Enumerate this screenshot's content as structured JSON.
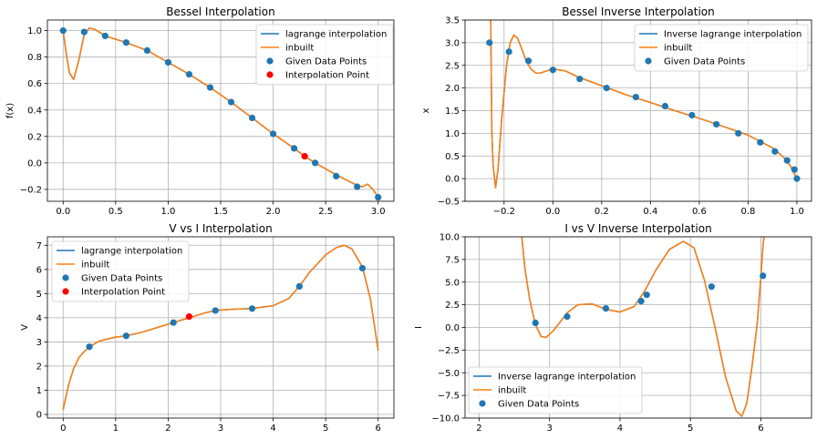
{
  "colors": {
    "lagrange": "#1f77b4",
    "inbuilt": "#ff7f0e",
    "points": "#1f77b4",
    "interp": "#ff0000",
    "grid": "#b0b0b0"
  },
  "chart_data": [
    {
      "type": "line",
      "title": "Bessel Interpolation",
      "xlabel": "",
      "ylabel": "f(x)",
      "xlim": [
        -0.15,
        3.15
      ],
      "ylim": [
        -0.29,
        1.08
      ],
      "xticks": [
        0.0,
        0.5,
        1.0,
        1.5,
        2.0,
        2.5,
        3.0
      ],
      "xticklabels": [
        "0.0",
        "0.5",
        "1.0",
        "1.5",
        "2.0",
        "2.5",
        "3.0"
      ],
      "yticks": [
        -0.2,
        0.0,
        0.2,
        0.4,
        0.6,
        0.8,
        1.0
      ],
      "yticklabels": [
        "−0.2",
        "0.0",
        "0.2",
        "0.4",
        "0.6",
        "0.8",
        "1.0"
      ],
      "grid": true,
      "legend_position": "top-right",
      "legend": [
        "lagrange interpolation",
        "inbuilt",
        "Given Data Points",
        "Interpolation Point"
      ],
      "series": [
        {
          "name": "lagrange interpolation",
          "kind": "line",
          "color": "#1f77b4",
          "x": [
            0.0,
            0.03,
            0.06,
            0.1,
            0.15,
            0.2,
            0.25,
            0.3,
            0.4,
            0.6,
            0.8,
            1.0,
            1.2,
            1.4,
            1.6,
            1.8,
            2.0,
            2.2,
            2.3,
            2.4,
            2.6,
            2.8,
            2.85,
            2.9,
            2.95,
            3.0
          ],
          "y": [
            1.0,
            0.82,
            0.68,
            0.63,
            0.78,
            0.97,
            1.02,
            1.01,
            0.96,
            0.91,
            0.85,
            0.76,
            0.67,
            0.57,
            0.46,
            0.34,
            0.22,
            0.11,
            0.05,
            0.0,
            -0.09,
            -0.17,
            -0.18,
            -0.16,
            -0.2,
            -0.26
          ]
        },
        {
          "name": "inbuilt",
          "kind": "line",
          "color": "#ff7f0e",
          "x": [
            0.0,
            0.03,
            0.06,
            0.1,
            0.15,
            0.2,
            0.25,
            0.3,
            0.4,
            0.6,
            0.8,
            1.0,
            1.2,
            1.4,
            1.6,
            1.8,
            2.0,
            2.2,
            2.3,
            2.4,
            2.6,
            2.8,
            2.85,
            2.9,
            2.95,
            3.0
          ],
          "y": [
            1.0,
            0.82,
            0.68,
            0.63,
            0.78,
            0.97,
            1.02,
            1.01,
            0.96,
            0.91,
            0.85,
            0.76,
            0.67,
            0.57,
            0.46,
            0.34,
            0.22,
            0.11,
            0.05,
            0.0,
            -0.09,
            -0.17,
            -0.18,
            -0.16,
            -0.2,
            -0.26
          ]
        },
        {
          "name": "Given Data Points",
          "kind": "scatter",
          "color": "#1f77b4",
          "x": [
            0.0,
            0.2,
            0.4,
            0.6,
            0.8,
            1.0,
            1.2,
            1.4,
            1.6,
            1.8,
            2.0,
            2.2,
            2.4,
            2.6,
            2.8,
            3.0
          ],
          "y": [
            1.0,
            0.99,
            0.96,
            0.91,
            0.85,
            0.76,
            0.67,
            0.57,
            0.46,
            0.34,
            0.22,
            0.11,
            0.0,
            -0.1,
            -0.18,
            -0.26
          ]
        },
        {
          "name": "Interpolation Point",
          "kind": "scatter",
          "color": "#ff0000",
          "x": [
            2.3
          ],
          "y": [
            0.05
          ]
        }
      ]
    },
    {
      "type": "line",
      "title": "Bessel Inverse Interpolation",
      "xlabel": "",
      "ylabel": "x",
      "xlim": [
        -0.36,
        1.06
      ],
      "ylim": [
        -0.5,
        3.5
      ],
      "xticks": [
        -0.2,
        0.0,
        0.2,
        0.4,
        0.6,
        0.8,
        1.0
      ],
      "xticklabels": [
        "−0.2",
        "0.0",
        "0.2",
        "0.4",
        "0.6",
        "0.8",
        "1.0"
      ],
      "yticks": [
        -0.5,
        0.0,
        0.5,
        1.0,
        1.5,
        2.0,
        2.5,
        3.0,
        3.5
      ],
      "yticklabels": [
        "−0.5",
        "0.0",
        "0.5",
        "1.0",
        "1.5",
        "2.0",
        "2.5",
        "3.0",
        "3.5"
      ],
      "grid": true,
      "legend_position": "top-right",
      "legend": [
        "Inverse lagrange interpolation",
        "inbuilt",
        "Given Data Points"
      ],
      "series": [
        {
          "name": "Inverse lagrange interpolation",
          "kind": "line",
          "color": "#1f77b4",
          "x": [
            -0.255,
            -0.25,
            -0.245,
            -0.235,
            -0.225,
            -0.21,
            -0.19,
            -0.175,
            -0.16,
            -0.145,
            -0.13,
            -0.11,
            -0.09,
            -0.07,
            -0.05,
            -0.03,
            0.0,
            0.05,
            0.1,
            0.2,
            0.3,
            0.4,
            0.5,
            0.6,
            0.7,
            0.8,
            0.9,
            0.95,
            0.975,
            0.985,
            0.99,
            1.0
          ],
          "y": [
            3.6,
            1.0,
            0.3,
            -0.2,
            0.2,
            1.3,
            2.5,
            3.0,
            3.17,
            3.1,
            2.9,
            2.6,
            2.42,
            2.33,
            2.33,
            2.37,
            2.42,
            2.38,
            2.25,
            2.05,
            1.85,
            1.68,
            1.5,
            1.33,
            1.15,
            0.96,
            0.68,
            0.45,
            0.27,
            0.15,
            0.1,
            0.0
          ]
        },
        {
          "name": "inbuilt",
          "kind": "line",
          "color": "#ff7f0e",
          "x": [
            -0.255,
            -0.25,
            -0.245,
            -0.235,
            -0.225,
            -0.21,
            -0.19,
            -0.175,
            -0.16,
            -0.145,
            -0.13,
            -0.11,
            -0.09,
            -0.07,
            -0.05,
            -0.03,
            0.0,
            0.05,
            0.1,
            0.2,
            0.3,
            0.4,
            0.5,
            0.6,
            0.7,
            0.8,
            0.9,
            0.95,
            0.975,
            0.985,
            0.99,
            1.0
          ],
          "y": [
            3.6,
            1.0,
            0.3,
            -0.2,
            0.2,
            1.3,
            2.5,
            3.0,
            3.17,
            3.1,
            2.9,
            2.6,
            2.42,
            2.33,
            2.33,
            2.37,
            2.42,
            2.38,
            2.25,
            2.05,
            1.85,
            1.68,
            1.5,
            1.33,
            1.15,
            0.96,
            0.68,
            0.45,
            0.27,
            0.15,
            0.1,
            0.0
          ]
        },
        {
          "name": "Given Data Points",
          "kind": "scatter",
          "color": "#1f77b4",
          "x": [
            -0.26,
            -0.18,
            -0.1,
            0.0,
            0.11,
            0.22,
            0.34,
            0.46,
            0.57,
            0.67,
            0.76,
            0.85,
            0.91,
            0.96,
            0.99,
            1.0
          ],
          "y": [
            3.0,
            2.8,
            2.6,
            2.4,
            2.2,
            2.0,
            1.8,
            1.6,
            1.4,
            1.2,
            1.0,
            0.8,
            0.6,
            0.4,
            0.2,
            0.0
          ]
        }
      ]
    },
    {
      "type": "line",
      "title": "V vs I Interpolation",
      "xlabel": "",
      "ylabel": "V",
      "xlim": [
        -0.3,
        6.3
      ],
      "ylim": [
        -0.15,
        7.35
      ],
      "xticks": [
        0,
        1,
        2,
        3,
        4,
        5,
        6
      ],
      "xticklabels": [
        "0",
        "1",
        "2",
        "3",
        "4",
        "5",
        "6"
      ],
      "yticks": [
        0,
        1,
        2,
        3,
        4,
        5,
        6,
        7
      ],
      "yticklabels": [
        "0",
        "1",
        "2",
        "3",
        "4",
        "5",
        "6",
        "7"
      ],
      "grid": true,
      "legend_position": "top-left",
      "legend": [
        "lagrange interpolation",
        "inbuilt",
        "Given Data Points",
        "Interpolation Point"
      ],
      "series": [
        {
          "name": "lagrange interpolation",
          "kind": "line",
          "color": "#1f77b4",
          "x": [
            0.0,
            0.1,
            0.2,
            0.3,
            0.4,
            0.5,
            0.7,
            1.0,
            1.2,
            1.5,
            1.8,
            2.1,
            2.4,
            2.7,
            2.9,
            3.2,
            3.6,
            4.0,
            4.3,
            4.5,
            4.7,
            5.0,
            5.2,
            5.35,
            5.5,
            5.7,
            5.85,
            6.0
          ],
          "y": [
            0.2,
            1.2,
            1.9,
            2.35,
            2.6,
            2.8,
            3.05,
            3.2,
            3.25,
            3.4,
            3.6,
            3.8,
            4.0,
            4.2,
            4.3,
            4.35,
            4.38,
            4.5,
            4.8,
            5.3,
            5.9,
            6.6,
            6.9,
            7.0,
            6.85,
            6.1,
            4.8,
            2.65
          ]
        },
        {
          "name": "inbuilt",
          "kind": "line",
          "color": "#ff7f0e",
          "x": [
            0.0,
            0.1,
            0.2,
            0.3,
            0.4,
            0.5,
            0.7,
            1.0,
            1.2,
            1.5,
            1.8,
            2.1,
            2.4,
            2.7,
            2.9,
            3.2,
            3.6,
            4.0,
            4.3,
            4.5,
            4.7,
            5.0,
            5.2,
            5.35,
            5.5,
            5.7,
            5.85,
            6.0
          ],
          "y": [
            0.2,
            1.2,
            1.9,
            2.35,
            2.6,
            2.8,
            3.05,
            3.2,
            3.25,
            3.4,
            3.6,
            3.8,
            4.0,
            4.2,
            4.3,
            4.35,
            4.38,
            4.5,
            4.8,
            5.3,
            5.9,
            6.6,
            6.9,
            7.0,
            6.85,
            6.1,
            4.8,
            2.65
          ]
        },
        {
          "name": "Given Data Points",
          "kind": "scatter",
          "color": "#1f77b4",
          "x": [
            0.5,
            1.2,
            2.1,
            2.9,
            3.6,
            4.5,
            5.7
          ],
          "y": [
            2.8,
            3.25,
            3.8,
            4.3,
            4.38,
            5.3,
            6.05
          ]
        },
        {
          "name": "Interpolation Point",
          "kind": "scatter",
          "color": "#ff0000",
          "x": [
            2.4
          ],
          "y": [
            4.05
          ]
        }
      ]
    },
    {
      "type": "line",
      "title": "I vs V Inverse Interpolation",
      "xlabel": "",
      "ylabel": "I",
      "xlim": [
        1.8,
        6.72
      ],
      "ylim": [
        -10.0,
        10.0
      ],
      "xticks": [
        2,
        3,
        4,
        5,
        6
      ],
      "xticklabels": [
        "2",
        "3",
        "4",
        "5",
        "6"
      ],
      "yticks": [
        -10.0,
        -7.5,
        -5.0,
        -2.5,
        0.0,
        2.5,
        5.0,
        7.5,
        10.0
      ],
      "yticklabels": [
        "−10.0",
        "−7.5",
        "−5.0",
        "−2.5",
        "0.0",
        "2.5",
        "5.0",
        "7.5",
        "10.0"
      ],
      "grid": true,
      "legend_position": "bottom-left",
      "legend": [
        "Inverse lagrange interpolation",
        "inbuilt",
        "Given Data Points"
      ],
      "series": [
        {
          "name": "Inverse lagrange interpolation",
          "kind": "line",
          "color": "#1f77b4",
          "x": [
            2.6,
            2.65,
            2.72,
            2.8,
            2.88,
            2.95,
            3.05,
            3.15,
            3.25,
            3.4,
            3.6,
            3.8,
            4.0,
            4.2,
            4.35,
            4.5,
            4.7,
            4.9,
            5.05,
            5.2,
            5.35,
            5.5,
            5.65,
            5.73,
            5.8,
            5.88,
            5.95,
            6.0,
            6.03,
            6.06
          ],
          "y": [
            10.5,
            6.5,
            3.0,
            0.3,
            -1.0,
            -1.1,
            -0.4,
            0.6,
            1.6,
            2.5,
            2.6,
            2.0,
            1.7,
            2.3,
            4.0,
            6.2,
            8.6,
            9.5,
            8.8,
            5.2,
            0.0,
            -5.5,
            -9.2,
            -9.8,
            -8.4,
            -4.0,
            0.5,
            5.5,
            9.0,
            11.0
          ]
        },
        {
          "name": "inbuilt",
          "kind": "line",
          "color": "#ff7f0e",
          "x": [
            2.6,
            2.65,
            2.72,
            2.8,
            2.88,
            2.95,
            3.05,
            3.15,
            3.25,
            3.4,
            3.6,
            3.8,
            4.0,
            4.2,
            4.35,
            4.5,
            4.7,
            4.9,
            5.05,
            5.2,
            5.35,
            5.5,
            5.65,
            5.73,
            5.8,
            5.88,
            5.95,
            6.0,
            6.03,
            6.06
          ],
          "y": [
            10.5,
            6.5,
            3.0,
            0.3,
            -1.0,
            -1.1,
            -0.4,
            0.6,
            1.6,
            2.5,
            2.6,
            2.0,
            1.7,
            2.3,
            4.0,
            6.2,
            8.6,
            9.5,
            8.8,
            5.2,
            0.0,
            -5.5,
            -9.2,
            -9.8,
            -8.4,
            -4.0,
            0.5,
            5.5,
            9.0,
            11.0
          ]
        },
        {
          "name": "Given Data Points",
          "kind": "scatter",
          "color": "#1f77b4",
          "x": [
            2.8,
            3.25,
            3.8,
            4.3,
            4.38,
            5.3,
            6.03
          ],
          "y": [
            0.5,
            1.2,
            2.1,
            2.9,
            3.6,
            4.5,
            5.7
          ]
        }
      ]
    }
  ]
}
